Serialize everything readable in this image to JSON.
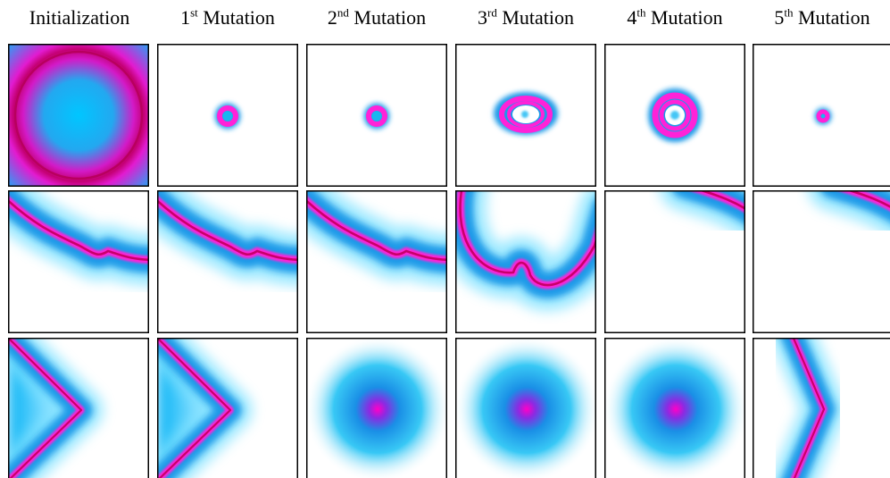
{
  "columns": [
    {
      "label": "Initialization"
    },
    {
      "num": "1",
      "sup": "st",
      "word": "Mutation"
    },
    {
      "num": "2",
      "sup": "nd",
      "word": "Mutation"
    },
    {
      "num": "3",
      "sup": "rd",
      "word": "Mutation"
    },
    {
      "num": "4",
      "sup": "th",
      "word": "Mutation"
    },
    {
      "num": "5",
      "sup": "th",
      "word": "Mutation"
    }
  ],
  "colors": {
    "ring": "#e0007a",
    "blue": "#0a8fe6",
    "cyan": "#00d8ff",
    "magenta": "#ff22d8",
    "border": "#000000",
    "background": "#ffffff"
  },
  "panels": [
    [
      "big-ring-with-cyan-center",
      "small-ring",
      "small-ring",
      "oval-double-ring",
      "double-ring",
      "tiny-ring"
    ],
    [
      "wavy-arc",
      "wavy-arc",
      "wavy-arc",
      "u-shaped-arc-with-bump",
      "corner-arc",
      "corner-arc"
    ],
    [
      "chevron-left",
      "chevron-left",
      "blurry-blob",
      "blurry-blob",
      "blurry-blob",
      "chevron-right"
    ]
  ]
}
